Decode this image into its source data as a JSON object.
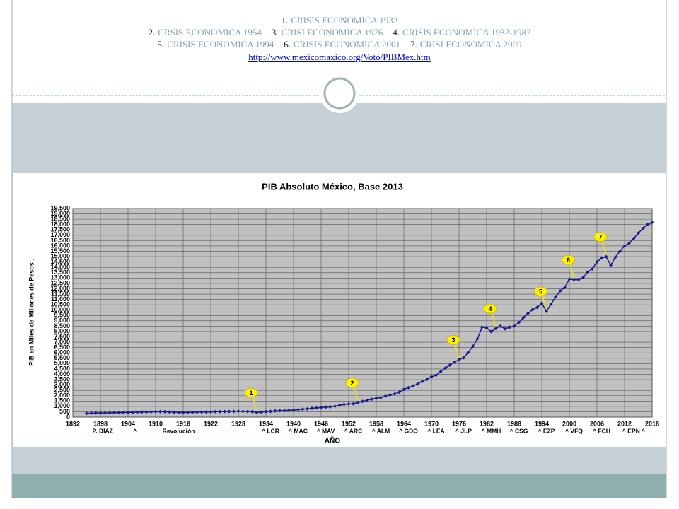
{
  "header": {
    "lines": [
      [
        {
          "num": "1.",
          "text": "CRISIS ECONOMICA 1932"
        }
      ],
      [
        {
          "num": "2.",
          "text": "CRSIS ECONOMICA 1954"
        },
        {
          "num": "3.",
          "text": "CRISI ECONOMICA 1976"
        },
        {
          "num": "4.",
          "text": "CRISIS ECONOMICA 1982-1987"
        }
      ],
      [
        {
          "num": "5.",
          "text": "CRISIS ECONOMICA 1994"
        },
        {
          "num": "6.",
          "text": "CRISIS ECONOMICA 2001"
        },
        {
          "num": "7.",
          "text": "CRISI ECONOMICA 2009"
        }
      ]
    ],
    "url": "http://www.mexicomaxico.org/Voto/PIBMex.htm"
  },
  "chart_data": {
    "type": "line",
    "title": "PIB Absoluto México, Base 2013",
    "ylabel": "PIB   en Miles de Millones de Pesos  .",
    "xlabel": "AÑO",
    "color": "#1a1a8c",
    "grid": true,
    "x": [
      1895,
      1896,
      1897,
      1898,
      1899,
      1900,
      1901,
      1902,
      1903,
      1904,
      1905,
      1906,
      1907,
      1908,
      1909,
      1910,
      1911,
      1912,
      1913,
      1914,
      1915,
      1916,
      1917,
      1918,
      1919,
      1920,
      1921,
      1922,
      1923,
      1924,
      1925,
      1926,
      1927,
      1928,
      1929,
      1930,
      1931,
      1932,
      1933,
      1934,
      1935,
      1936,
      1937,
      1938,
      1939,
      1940,
      1941,
      1942,
      1943,
      1944,
      1945,
      1946,
      1947,
      1948,
      1949,
      1950,
      1951,
      1952,
      1953,
      1954,
      1955,
      1956,
      1957,
      1958,
      1959,
      1960,
      1961,
      1962,
      1963,
      1964,
      1965,
      1966,
      1967,
      1968,
      1969,
      1970,
      1971,
      1972,
      1973,
      1974,
      1975,
      1976,
      1977,
      1978,
      1979,
      1980,
      1981,
      1982,
      1983,
      1984,
      1985,
      1986,
      1987,
      1988,
      1989,
      1990,
      1991,
      1992,
      1993,
      1994,
      1995,
      1996,
      1997,
      1998,
      1999,
      2000,
      2001,
      2002,
      2003,
      2004,
      2005,
      2006,
      2007,
      2008,
      2009,
      2010,
      2011,
      2012,
      2013,
      2014,
      2015,
      2016,
      2017,
      2018
    ],
    "values": [
      350,
      370,
      380,
      390,
      390,
      400,
      410,
      420,
      430,
      440,
      450,
      460,
      470,
      480,
      490,
      500,
      510,
      500,
      480,
      460,
      440,
      430,
      440,
      450,
      460,
      470,
      480,
      490,
      500,
      510,
      520,
      530,
      540,
      550,
      540,
      520,
      510,
      430,
      470,
      510,
      540,
      580,
      600,
      610,
      640,
      660,
      700,
      740,
      770,
      830,
      860,
      900,
      930,
      960,
      1020,
      1100,
      1190,
      1230,
      1240,
      1360,
      1470,
      1570,
      1680,
      1770,
      1830,
      1970,
      2070,
      2170,
      2330,
      2590,
      2760,
      2920,
      3100,
      3340,
      3530,
      3770,
      3920,
      4250,
      4580,
      4860,
      5130,
      5370,
      5550,
      6050,
      6620,
      7320,
      8400,
      8340,
      7990,
      8290,
      8510,
      8250,
      8400,
      8500,
      8850,
      9300,
      9700,
      10050,
      10250,
      10650,
      9900,
      10550,
      11250,
      11800,
      12120,
      12900,
      12850,
      12850,
      13050,
      13560,
      13860,
      14510,
      14870,
      15000,
      14200,
      14950,
      15500,
      16000,
      16250,
      16700,
      17200,
      17650,
      18000,
      18200
    ],
    "xlim": [
      1892,
      2018
    ],
    "xticks": [
      1892,
      1898,
      1904,
      1910,
      1916,
      1922,
      1928,
      1934,
      1940,
      1946,
      1952,
      1958,
      1964,
      1970,
      1976,
      1982,
      1988,
      1994,
      2000,
      2006,
      2012,
      2018
    ],
    "ylim": [
      0,
      19500
    ],
    "yticks": [
      0,
      500,
      {
        "value": 1000,
        "label": "1,000"
      },
      {
        "value": 1500,
        "label": "1,500"
      },
      {
        "value": 2000,
        "label": "2,000"
      },
      {
        "value": 2500,
        "label": "2,500"
      },
      {
        "value": 3000,
        "label": "3,000"
      },
      {
        "value": 3500,
        "label": "3,500"
      },
      {
        "value": 4000,
        "label": "4,000"
      },
      {
        "value": 4500,
        "label": "4,500"
      },
      {
        "value": 5000,
        "label": "5,000"
      },
      {
        "value": 5500,
        "label": "5,500"
      },
      {
        "value": 6000,
        "label": "6,000"
      },
      {
        "value": 6500,
        "label": "6,500"
      },
      {
        "value": 7000,
        "label": "7,000"
      },
      {
        "value": 7500,
        "label": "7,500"
      },
      {
        "value": 8000,
        "label": "8,000"
      },
      {
        "value": 8500,
        "label": "8,500"
      },
      {
        "value": 9000,
        "label": "9,000"
      },
      {
        "value": 9500,
        "label": "9,500"
      },
      {
        "value": 10000,
        "label": "10,000"
      },
      {
        "value": 10500,
        "label": "10,500"
      },
      {
        "value": 11000,
        "label": "11,000"
      },
      {
        "value": 11500,
        "label": "11,500"
      },
      {
        "value": 12000,
        "label": "12,000"
      },
      {
        "value": 12500,
        "label": "12,500"
      },
      {
        "value": 13000,
        "label": "13,000"
      },
      {
        "value": 13500,
        "label": "13,500"
      },
      {
        "value": 14000,
        "label": "14,000"
      },
      {
        "value": 14500,
        "label": "14,500"
      },
      {
        "value": 15000,
        "label": "15,000"
      },
      {
        "value": 15500,
        "label": "15,500"
      },
      {
        "value": 16000,
        "label": "16,000"
      },
      {
        "value": 16500,
        "label": "16,500"
      },
      {
        "value": 17000,
        "label": "17,000"
      },
      {
        "value": 17500,
        "label": "17,500"
      },
      {
        "value": 18000,
        "label": "18,000"
      },
      {
        "value": 18500,
        "label": "18,500"
      },
      {
        "value": 19000,
        "label": "19,000"
      },
      {
        "value": 19500,
        "label": "19,500"
      }
    ],
    "annotations": [
      {
        "label": "1",
        "x": 1932
      },
      {
        "label": "2",
        "x": 1954
      },
      {
        "label": "3",
        "x": 1976
      },
      {
        "label": "4",
        "x": 1984
      },
      {
        "label": "5",
        "x": 1995
      },
      {
        "label": "6",
        "x": 2001
      },
      {
        "label": "7",
        "x": 2008
      }
    ],
    "era_labels": [
      {
        "label": "P. DÍAZ",
        "x": 1898.5
      },
      {
        "label": "^",
        "x": 1905.5
      },
      {
        "label": "Revolución",
        "x": 1915
      },
      {
        "label": "^ LCR",
        "x": 1935
      },
      {
        "label": "^ MAC",
        "x": 1941
      },
      {
        "label": "^ MAV",
        "x": 1947
      },
      {
        "label": "^ ARC",
        "x": 1953
      },
      {
        "label": "^ ALM",
        "x": 1959
      },
      {
        "label": "^ GDO",
        "x": 1965
      },
      {
        "label": "^ LEA",
        "x": 1971
      },
      {
        "label": "^ JLP",
        "x": 1977
      },
      {
        "label": "^ MMH",
        "x": 1983
      },
      {
        "label": "^ CSG",
        "x": 1989
      },
      {
        "label": "^ EZP",
        "x": 1995
      },
      {
        "label": "^ VFQ",
        "x": 2001
      },
      {
        "label": "^ FCH",
        "x": 2007
      },
      {
        "label": "^ EPN ^",
        "x": 2014
      }
    ]
  }
}
